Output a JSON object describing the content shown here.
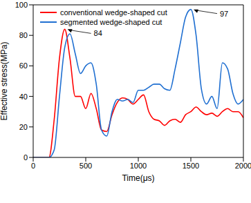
{
  "chart_data": {
    "type": "line",
    "x_label": "Time(μs)",
    "y_label": "Effective stress(MPa)",
    "x": [
      0,
      50,
      100,
      150,
      200,
      250,
      300,
      350,
      400,
      450,
      500,
      550,
      600,
      650,
      700,
      750,
      800,
      850,
      900,
      950,
      1000,
      1050,
      1100,
      1150,
      1200,
      1250,
      1300,
      1350,
      1400,
      1450,
      1500,
      1550,
      1600,
      1650,
      1700,
      1750,
      1800,
      1850,
      1900,
      1950,
      2000
    ],
    "series": [
      {
        "name": "conventional  wedge-shaped cut",
        "color": "#ff0000",
        "values": [
          0,
          0,
          0,
          0,
          25,
          65,
          84,
          65,
          40,
          40,
          32,
          42,
          32,
          18,
          17,
          28,
          36,
          39,
          38,
          35,
          38,
          41,
          30,
          25,
          24,
          21,
          24,
          25,
          23,
          28,
          30,
          33,
          30,
          28,
          29,
          27,
          30,
          32,
          30,
          30,
          26
        ]
      },
      {
        "name": "segmented  wedge-shaped cut",
        "color": "#1f6fd1",
        "values": [
          0,
          0,
          0,
          0,
          5,
          40,
          72,
          81,
          68,
          55,
          60,
          62,
          48,
          18,
          14,
          30,
          38,
          37,
          38,
          36,
          44,
          44,
          46,
          48,
          48,
          45,
          44,
          58,
          75,
          92,
          97,
          80,
          45,
          35,
          40,
          32,
          62,
          58,
          42,
          35,
          38
        ]
      }
    ],
    "annotations": [
      {
        "text": "84",
        "x": 300,
        "y": 84
      },
      {
        "text": "97",
        "x": 1500,
        "y": 97
      }
    ],
    "xlim": [
      0,
      2000
    ],
    "xticks": [
      0,
      500,
      1000,
      1500,
      2000
    ],
    "ylim": [
      0,
      100
    ],
    "yticks": [
      0,
      20,
      40,
      60,
      80,
      100
    ],
    "grid": false,
    "legend": "upper left"
  }
}
